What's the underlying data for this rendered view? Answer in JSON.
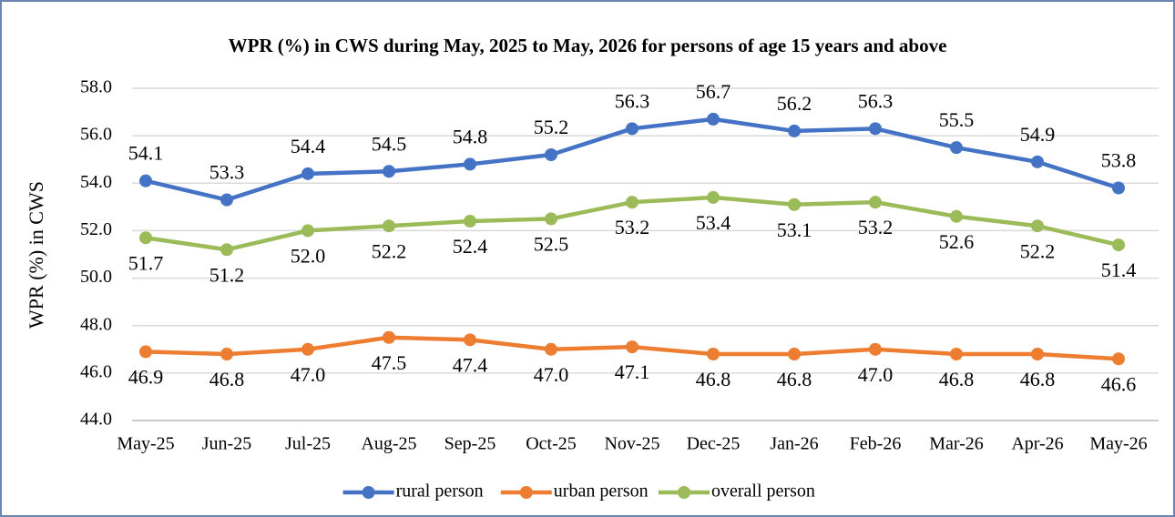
{
  "chart_data": {
    "type": "line",
    "title": "WPR (%) in CWS during May, 2025 to May, 2026 for persons of age 15 years and above",
    "y_label": "WPR (%) in CWS",
    "categories": [
      "May-25",
      "Jun-25",
      "Jul-25",
      "Aug-25",
      "Sep-25",
      "Oct-25",
      "Nov-25",
      "Dec-25",
      "Jan-26",
      "Feb-26",
      "Mar-26",
      "Apr-26",
      "May-26"
    ],
    "series": [
      {
        "name": "rural person",
        "color": "#4472c4",
        "values": [
          54.1,
          53.3,
          54.4,
          54.5,
          54.8,
          55.2,
          56.3,
          56.7,
          56.2,
          56.3,
          55.5,
          54.9,
          53.8
        ]
      },
      {
        "name": "urban person",
        "color": "#ed7d31",
        "values": [
          46.9,
          46.8,
          47,
          47.5,
          47.4,
          47,
          47.1,
          46.8,
          46.8,
          47,
          46.8,
          46.8,
          46.6
        ],
        "value_labels": [
          "46.9",
          "46.8",
          "47.0",
          "47.5",
          "47.4",
          "47.0",
          "47.1",
          "46.8",
          "46.8",
          "47.0",
          "46.8",
          "46.8",
          "46.6"
        ]
      },
      {
        "name": "overall person",
        "color": "#9bbb59",
        "values": [
          51.7,
          51.2,
          52,
          52.2,
          52.4,
          52.5,
          53.2,
          53.4,
          53.1,
          53.2,
          52.6,
          52.2,
          51.4
        ],
        "value_labels": [
          "51.7",
          "51.2",
          "52.0",
          "52.2",
          "52.4",
          "52.5",
          "53.2",
          "53.4",
          "53.1",
          "53.2",
          "52.6",
          "52.2",
          "51.4"
        ]
      }
    ],
    "ylim": [
      44,
      58
    ],
    "yticks": [
      {
        "value": 44,
        "label": "44.0"
      },
      {
        "value": 46,
        "label": "46.0"
      },
      {
        "value": 48,
        "label": "48.0"
      },
      {
        "value": 50,
        "label": "50.0"
      },
      {
        "value": 52,
        "label": "52.0"
      },
      {
        "value": 54,
        "label": "54.0"
      },
      {
        "value": 56,
        "label": "56.0"
      },
      {
        "value": 58,
        "label": "58.0"
      }
    ],
    "grid": true,
    "legend": "bottom"
  }
}
